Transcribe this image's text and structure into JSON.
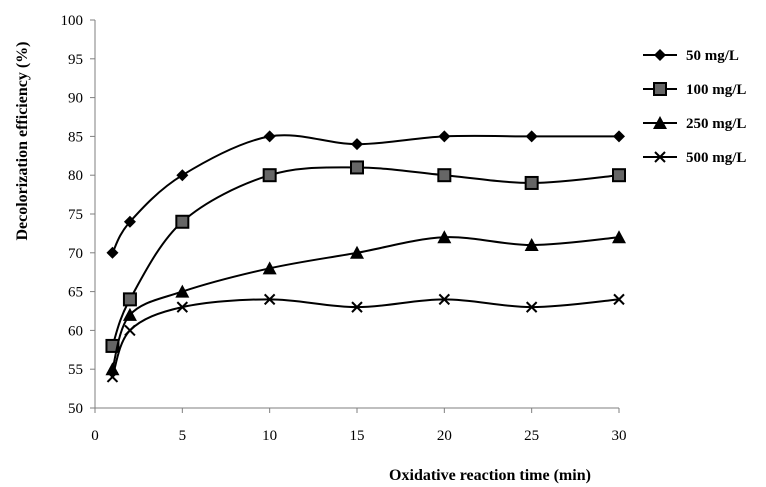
{
  "chart_data": {
    "type": "line",
    "title": "",
    "xlabel": "Oxidative reaction time (min)",
    "ylabel": "Decolorization efficiency (%)",
    "xlim": [
      0,
      30
    ],
    "ylim": [
      50,
      100
    ],
    "xticks": [
      0,
      5,
      10,
      15,
      20,
      25,
      30
    ],
    "yticks": [
      50,
      55,
      60,
      65,
      70,
      75,
      80,
      85,
      90,
      95,
      100
    ],
    "grid": false,
    "legend_position": "right",
    "x": [
      1,
      2,
      5,
      10,
      15,
      20,
      25,
      30
    ],
    "series": [
      {
        "name": "50 mg/L",
        "marker": "diamond",
        "values": [
          70,
          74,
          80,
          85,
          84,
          85,
          85,
          85
        ]
      },
      {
        "name": "100 mg/L",
        "marker": "square",
        "values": [
          58,
          64,
          74,
          80,
          81,
          80,
          79,
          80
        ]
      },
      {
        "name": "250 mg/L",
        "marker": "triangle",
        "values": [
          55,
          62,
          65,
          68,
          70,
          72,
          71,
          72
        ]
      },
      {
        "name": "500 mg/L",
        "marker": "cross",
        "values": [
          54,
          60,
          63,
          64,
          63,
          64,
          63,
          64
        ]
      }
    ],
    "colors": {
      "line": "#000000",
      "axis": "#7f7f7f",
      "marker_fill": "#000000",
      "square_face": "#666666"
    }
  }
}
